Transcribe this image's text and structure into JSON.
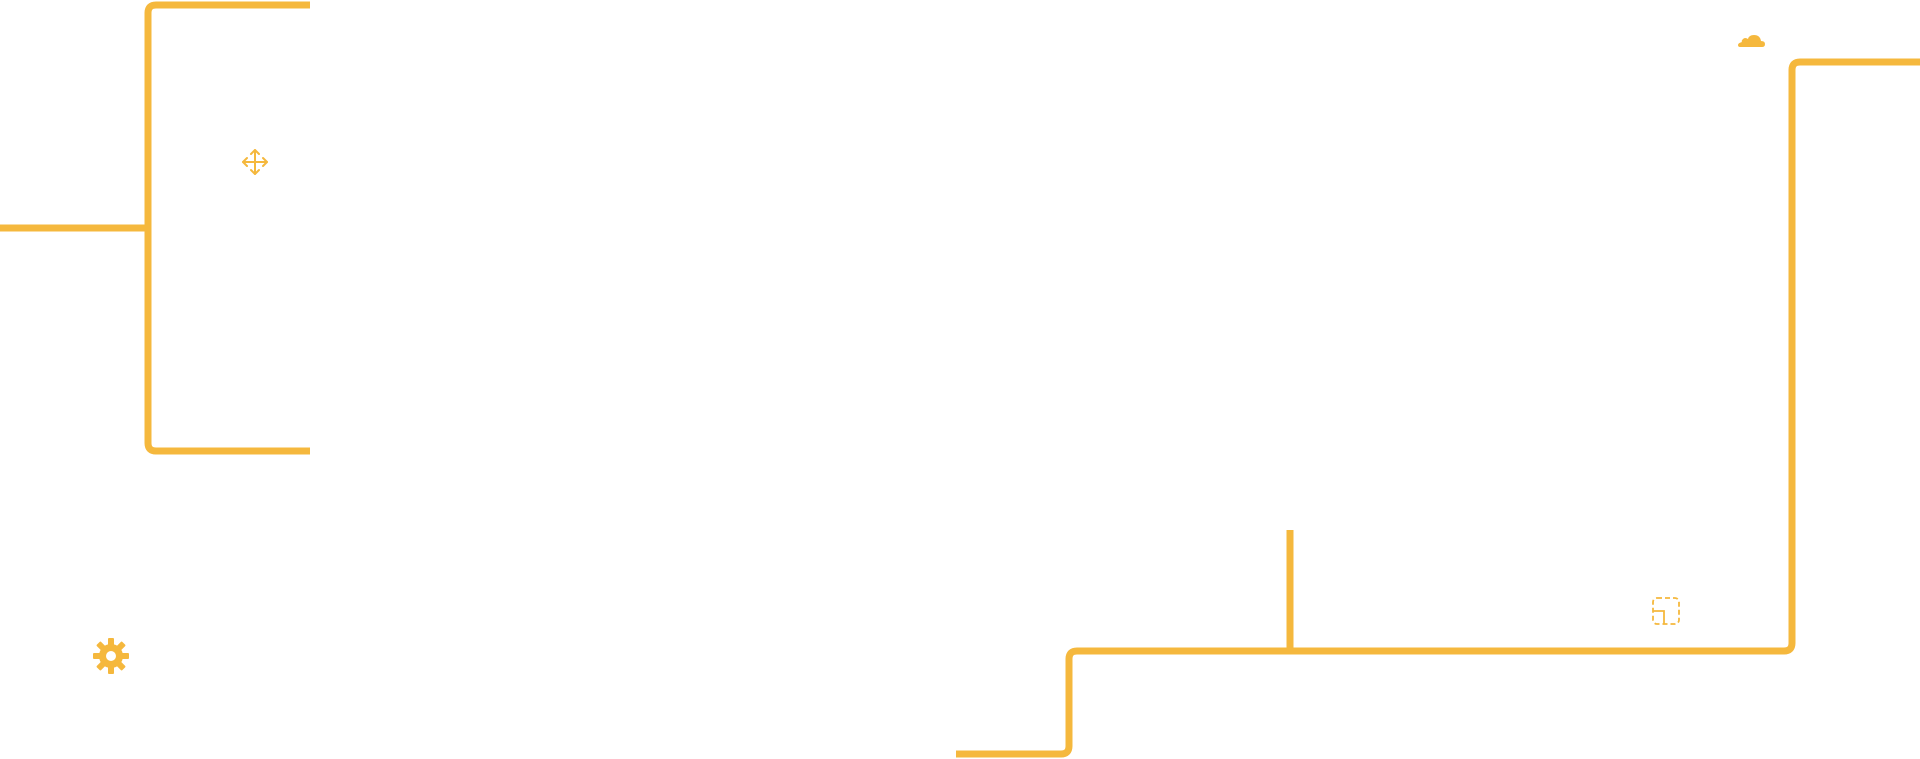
{
  "theme": {
    "accent_color": "#f5b83d",
    "background_color": "#ffffff"
  },
  "icons": [
    {
      "name": "move-icon",
      "glyph": "move"
    },
    {
      "name": "cloud-icon",
      "glyph": "cloud"
    },
    {
      "name": "gear-icon",
      "glyph": "gear"
    },
    {
      "name": "select-area-icon",
      "glyph": "dashed-selection"
    }
  ],
  "connectors": [
    {
      "name": "bracket-connector-left"
    },
    {
      "name": "stem-connector-left"
    },
    {
      "name": "step-connector-right"
    },
    {
      "name": "branch-connector-vertical"
    }
  ]
}
